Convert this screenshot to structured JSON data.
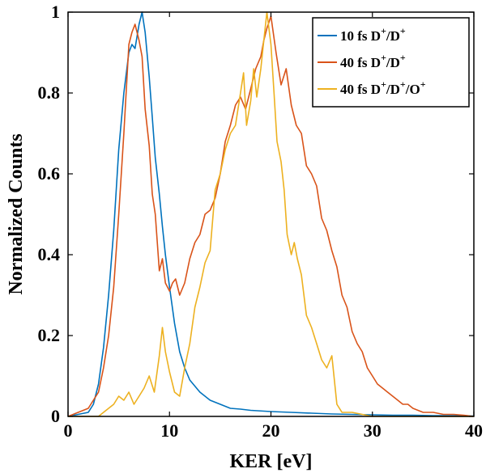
{
  "chart_data": {
    "type": "line",
    "title": "",
    "xlabel": "KER [eV]",
    "ylabel": "Normalized Counts",
    "xlim": [
      0,
      40
    ],
    "ylim": [
      0,
      1
    ],
    "xticks": [
      "0",
      "10",
      "20",
      "30",
      "40"
    ],
    "yticks": [
      "0",
      "0.2",
      "0.4",
      "0.6",
      "0.8",
      "1"
    ],
    "grid": false,
    "legend_position": "top-right",
    "series": [
      {
        "name": "10 fs D⁺/D⁺",
        "color": "#0072BD",
        "x": [
          0,
          1,
          2,
          2.5,
          3,
          3.5,
          4,
          4.5,
          5,
          5.5,
          6,
          6.3,
          6.6,
          7,
          7.3,
          7.6,
          8,
          8.3,
          8.6,
          9,
          9.3,
          9.6,
          10,
          10.5,
          11,
          11.5,
          12,
          13,
          14,
          15,
          16,
          17,
          18,
          20,
          22,
          24,
          26,
          28,
          30,
          32,
          34,
          36,
          38,
          40
        ],
        "y": [
          0.0,
          0.005,
          0.01,
          0.03,
          0.08,
          0.17,
          0.3,
          0.46,
          0.66,
          0.8,
          0.9,
          0.92,
          0.91,
          0.97,
          1.0,
          0.95,
          0.84,
          0.74,
          0.64,
          0.55,
          0.47,
          0.4,
          0.32,
          0.23,
          0.16,
          0.12,
          0.09,
          0.06,
          0.04,
          0.03,
          0.02,
          0.018,
          0.015,
          0.012,
          0.01,
          0.008,
          0.006,
          0.005,
          0.004,
          0.003,
          0.003,
          0.002,
          0.002,
          0.001
        ]
      },
      {
        "name": "40 fs D⁺/D⁺",
        "color": "#D95319",
        "x": [
          0,
          0.5,
          1,
          1.5,
          2,
          2.5,
          3,
          3.5,
          4,
          4.5,
          5,
          5.5,
          6,
          6.3,
          6.6,
          7,
          7.3,
          7.6,
          8,
          8.3,
          8.6,
          9,
          9.3,
          9.6,
          10,
          10.3,
          10.6,
          11,
          11.5,
          12,
          12.5,
          13,
          13.5,
          14,
          14.5,
          15,
          15.5,
          16,
          16.5,
          17,
          17.5,
          18,
          18.5,
          19,
          19.3,
          19.6,
          20,
          20.5,
          21,
          21.5,
          22,
          22.5,
          23,
          23.5,
          24,
          24.5,
          25,
          25.5,
          26,
          26.5,
          27,
          27.5,
          28,
          28.5,
          29,
          29.5,
          30,
          30.5,
          31,
          31.5,
          32,
          32.5,
          33,
          33.5,
          34,
          35,
          36,
          37,
          38,
          39,
          40
        ],
        "y": [
          0.0,
          0.005,
          0.01,
          0.015,
          0.02,
          0.04,
          0.06,
          0.12,
          0.2,
          0.32,
          0.5,
          0.7,
          0.92,
          0.95,
          0.97,
          0.93,
          0.89,
          0.76,
          0.67,
          0.55,
          0.5,
          0.36,
          0.39,
          0.33,
          0.31,
          0.33,
          0.34,
          0.3,
          0.33,
          0.39,
          0.43,
          0.45,
          0.5,
          0.51,
          0.54,
          0.6,
          0.68,
          0.72,
          0.77,
          0.79,
          0.76,
          0.81,
          0.86,
          0.89,
          0.93,
          0.96,
          0.99,
          0.9,
          0.82,
          0.86,
          0.77,
          0.72,
          0.7,
          0.62,
          0.6,
          0.57,
          0.49,
          0.46,
          0.41,
          0.37,
          0.3,
          0.27,
          0.21,
          0.18,
          0.16,
          0.12,
          0.1,
          0.08,
          0.07,
          0.06,
          0.05,
          0.04,
          0.03,
          0.03,
          0.02,
          0.01,
          0.01,
          0.005,
          0.005,
          0.003,
          0.0
        ]
      },
      {
        "name": "40 fs D⁺/D⁺/O⁺",
        "color": "#EDB120",
        "x": [
          0,
          2,
          3,
          3.5,
          4,
          4.5,
          5,
          5.5,
          6,
          6.5,
          7,
          7.5,
          8,
          8.5,
          9,
          9.3,
          9.6,
          10,
          10.5,
          11,
          11.5,
          12,
          12.5,
          13,
          13.5,
          14,
          14.5,
          15,
          15.5,
          16,
          16.5,
          17,
          17.3,
          17.6,
          18,
          18.3,
          18.6,
          19,
          19.3,
          19.6,
          20,
          20.3,
          20.6,
          21,
          21.3,
          21.6,
          22,
          22.3,
          22.6,
          23,
          23.5,
          24,
          24.5,
          25,
          25.5,
          26,
          26.5,
          27,
          28,
          29,
          30,
          32,
          34,
          36,
          38,
          40
        ],
        "y": [
          0.0,
          0.0,
          0.0,
          0.01,
          0.02,
          0.03,
          0.05,
          0.04,
          0.06,
          0.03,
          0.05,
          0.07,
          0.1,
          0.06,
          0.15,
          0.22,
          0.16,
          0.11,
          0.06,
          0.05,
          0.12,
          0.18,
          0.27,
          0.32,
          0.38,
          0.41,
          0.56,
          0.6,
          0.66,
          0.7,
          0.72,
          0.8,
          0.85,
          0.72,
          0.78,
          0.86,
          0.79,
          0.86,
          0.93,
          1.0,
          0.92,
          0.8,
          0.68,
          0.63,
          0.56,
          0.45,
          0.4,
          0.43,
          0.39,
          0.35,
          0.25,
          0.22,
          0.18,
          0.14,
          0.12,
          0.15,
          0.03,
          0.01,
          0.01,
          0.005,
          0.0,
          0.0,
          0.0,
          0.0,
          0.0,
          0.0
        ]
      }
    ]
  }
}
